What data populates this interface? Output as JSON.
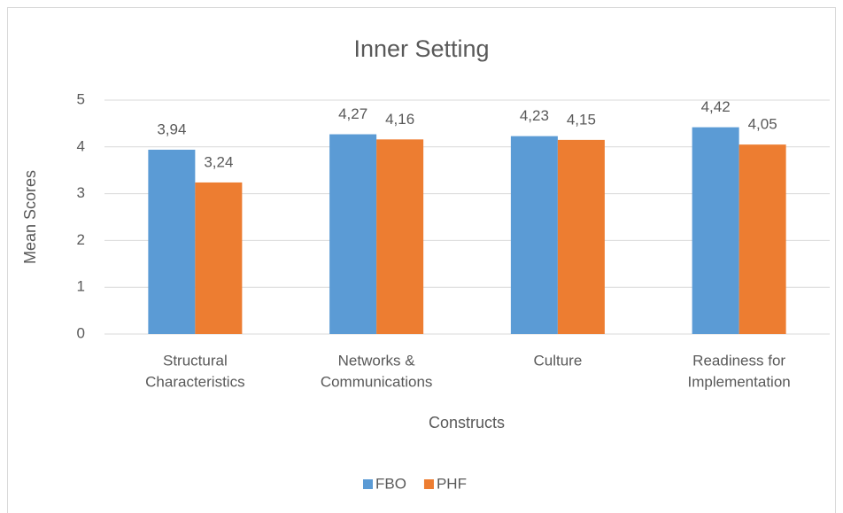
{
  "chart_data": {
    "type": "bar",
    "title": "Inner Setting",
    "x_label": "Constructs",
    "y_label": "Mean Scores",
    "categories": [
      [
        "Structural",
        "Characteristics"
      ],
      [
        "Networks &",
        "Communications"
      ],
      [
        "Culture"
      ],
      [
        "Readiness for",
        "Implementation"
      ]
    ],
    "series": [
      {
        "name": "FBO",
        "color": "#5b9bd5",
        "values": [
          3.94,
          4.27,
          4.23,
          4.42
        ],
        "value_labels": [
          "3,94",
          "4,27",
          "4,23",
          "4,42"
        ]
      },
      {
        "name": "PHF",
        "color": "#ed7d31",
        "values": [
          3.24,
          4.16,
          4.15,
          4.05
        ],
        "value_labels": [
          "3,24",
          "4,16",
          "4,15",
          "4,05"
        ]
      }
    ],
    "ylim": [
      0,
      5
    ],
    "yticks": [
      0,
      1,
      2,
      3,
      4,
      5
    ],
    "grid": true,
    "legend": "bottom"
  }
}
